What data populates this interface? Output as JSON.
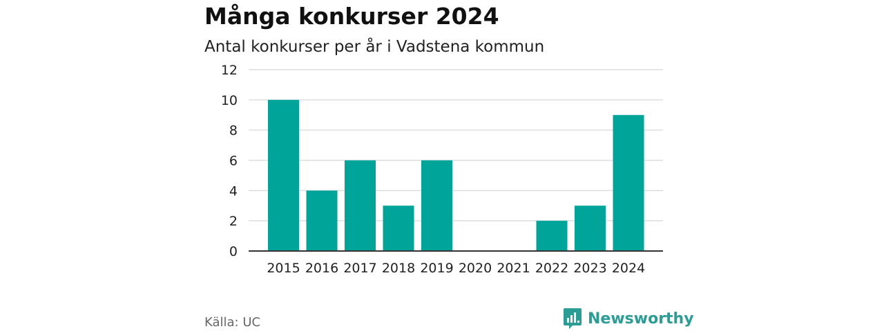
{
  "header": {
    "title": "Många konkurser 2024",
    "subtitle": "Antal konkurser per år i Vadstena kommun"
  },
  "footer": {
    "source": "Källa: UC",
    "brand": "Newsworthy"
  },
  "colors": {
    "bar": "#00a499",
    "brand": "#2a9d95",
    "grid": "#dddddd",
    "axis": "#333333"
  },
  "chart_data": {
    "type": "bar",
    "categories": [
      "2015",
      "2016",
      "2017",
      "2018",
      "2019",
      "2020",
      "2021",
      "2022",
      "2023",
      "2024"
    ],
    "values": [
      10,
      4,
      6,
      3,
      6,
      0,
      0,
      2,
      3,
      9
    ],
    "ylim": [
      0,
      12
    ],
    "yticks": [
      0,
      2,
      4,
      6,
      8,
      10,
      12
    ],
    "grid": true,
    "xlabel": "",
    "ylabel": ""
  }
}
